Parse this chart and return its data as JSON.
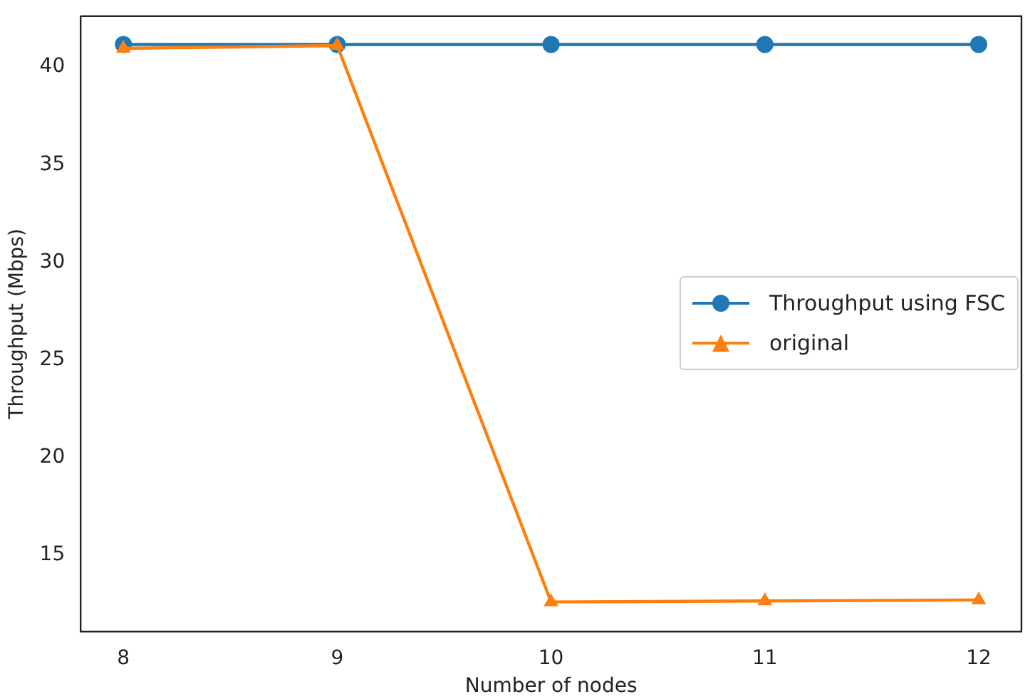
{
  "chart_data": {
    "type": "line",
    "xlabel": "Number of nodes",
    "ylabel": "Throughput (Mbps)",
    "x": [
      8,
      9,
      10,
      11,
      12
    ],
    "xlim": [
      7.8,
      12.2
    ],
    "xticks": [
      8,
      9,
      10,
      11,
      12
    ],
    "ylim": [
      11.1,
      42.6
    ],
    "yticks": [
      15,
      20,
      25,
      30,
      35,
      40
    ],
    "series": [
      {
        "name": "Throughput using FSC",
        "color": "#1f77b4",
        "marker": "circle",
        "values": [
          41.15,
          41.15,
          41.15,
          41.15,
          41.15
        ]
      },
      {
        "name": "original",
        "color": "#ff7f0e",
        "marker": "triangle",
        "values": [
          40.95,
          41.1,
          12.6,
          12.65,
          12.7
        ]
      }
    ],
    "grid": false,
    "legend": "center right"
  }
}
